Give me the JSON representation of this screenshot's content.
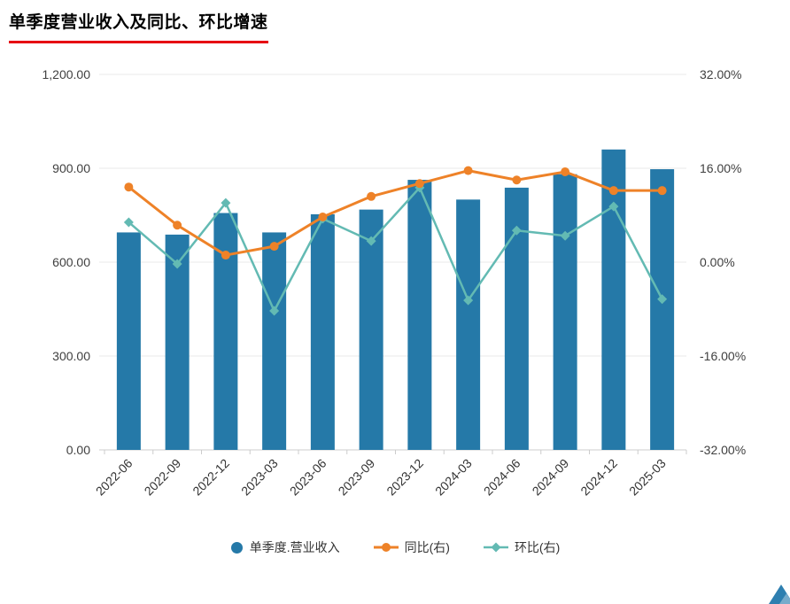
{
  "title": "单季度营业收入及同比、环比增速",
  "colors": {
    "title_underline": "#e60012",
    "grid": "#e8e8e8",
    "axis_line": "#cccccc",
    "axis_label": "#404040",
    "logo": "#2e7fb0"
  },
  "chart_data": {
    "type": "bar",
    "categories": [
      "2022-06",
      "2022-09",
      "2022-12",
      "2023-03",
      "2023-06",
      "2023-09",
      "2023-12",
      "2024-03",
      "2024-06",
      "2024-09",
      "2024-12",
      "2025-03"
    ],
    "series": [
      {
        "name": "单季度.营业收入",
        "type": "bar",
        "axis": "left",
        "color": "#2579a8",
        "marker": "circle",
        "values": [
          695,
          688,
          757,
          695,
          753,
          768,
          863,
          800,
          838,
          881,
          960,
          897
        ]
      },
      {
        "name": "同比(右)",
        "type": "line",
        "axis": "right",
        "color": "#ee8228",
        "marker": "circle",
        "values": [
          12.8,
          6.3,
          1.2,
          2.7,
          7.7,
          11.2,
          13.4,
          15.6,
          14.0,
          15.4,
          12.2,
          12.2
        ]
      },
      {
        "name": "环比(右)",
        "type": "line",
        "axis": "right",
        "color": "#63bab3",
        "marker": "diamond",
        "values": [
          6.8,
          -0.3,
          10.1,
          -8.3,
          7.4,
          3.6,
          12.7,
          -6.5,
          5.4,
          4.5,
          9.5,
          -6.3
        ]
      }
    ],
    "left_axis": {
      "min": 0,
      "max": 1200,
      "step": 300,
      "labels": [
        "0.00",
        "300.00",
        "600.00",
        "900.00",
        "1,200.00"
      ]
    },
    "right_axis": {
      "min": -32,
      "max": 32,
      "step": 16,
      "labels": [
        "-32.00%",
        "-16.00%",
        "0.00%",
        "16.00%",
        "32.00%"
      ]
    },
    "grid": true,
    "legend_position": "bottom"
  }
}
